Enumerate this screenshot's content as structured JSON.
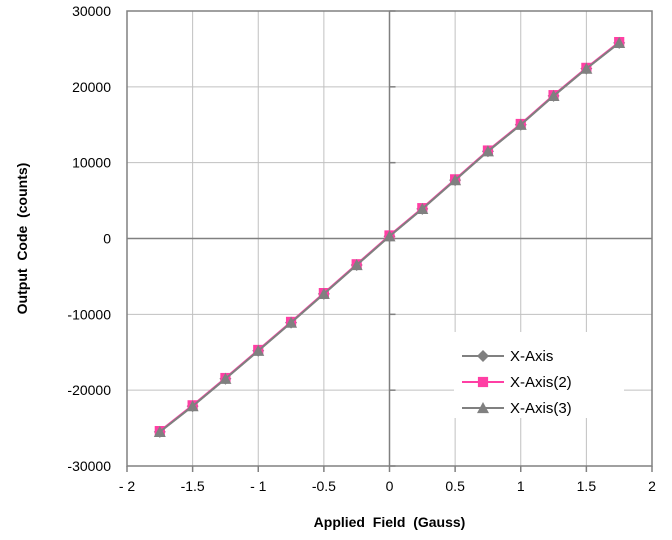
{
  "chart_data": {
    "type": "line",
    "title": "",
    "xlabel": "Applied  Field  (Gauss)",
    "ylabel": "Output  Code  (counts)",
    "xlim": [
      -2,
      2
    ],
    "ylim": [
      -30000,
      30000
    ],
    "x_ticks": [
      -2,
      -1.5,
      -1,
      -0.5,
      0,
      0.5,
      1,
      1.5,
      2
    ],
    "x_tick_labels": [
      "- 2",
      "-1.5",
      "- 1",
      "-0.5",
      "0",
      "0.5",
      "1",
      "1.5",
      "2"
    ],
    "y_ticks": [
      -30000,
      -20000,
      -10000,
      0,
      10000,
      20000,
      30000
    ],
    "y_tick_labels": [
      "-30000",
      "-20000",
      "-10000",
      "0",
      "10000",
      "20000",
      "30000"
    ],
    "grid": true,
    "legend_position": "bottom-right",
    "x": [
      -1.75,
      -1.5,
      -1.25,
      -1.0,
      -0.75,
      -0.5,
      -0.25,
      0,
      0.25,
      0.5,
      0.75,
      1.0,
      1.25,
      1.5,
      1.75
    ],
    "series": [
      {
        "name": "X-Axis",
        "marker": "diamond",
        "color": "#808080",
        "values": [
          -25500,
          -22100,
          -18500,
          -14800,
          -11100,
          -7300,
          -3500,
          300,
          3900,
          7700,
          11500,
          15000,
          18800,
          22400,
          25800
        ]
      },
      {
        "name": "X-Axis(2)",
        "marker": "square",
        "color": "#ff3fa4",
        "values": [
          -25400,
          -22000,
          -18400,
          -14700,
          -11000,
          -7200,
          -3400,
          400,
          4000,
          7800,
          11600,
          15100,
          18900,
          22500,
          25900
        ]
      },
      {
        "name": "X-Axis(3)",
        "marker": "triangle",
        "color": "#808080",
        "values": [
          -25500,
          -22100,
          -18500,
          -14800,
          -11100,
          -7300,
          -3500,
          300,
          3900,
          7700,
          11500,
          15000,
          18800,
          22400,
          25800
        ]
      }
    ]
  }
}
